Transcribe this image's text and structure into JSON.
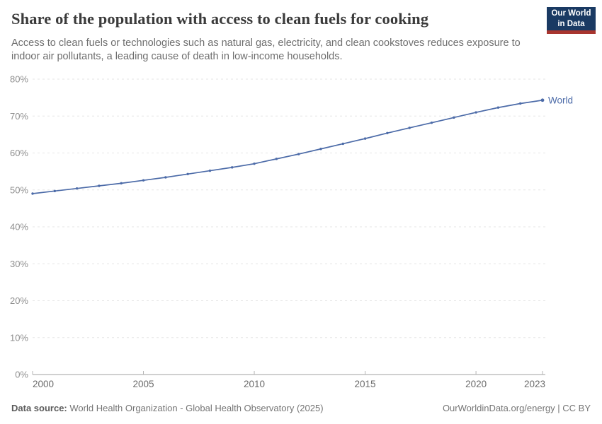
{
  "header": {
    "title": "Share of the population with access to clean fuels for cooking",
    "subtitle": "Access to clean fuels or technologies such as natural gas, electricity, and clean cookstoves reduces exposure to indoor air pollutants, a leading cause of death in low-income households.",
    "logo": {
      "line1": "Our World",
      "line2": "in Data"
    }
  },
  "chart_data": {
    "type": "line",
    "title": "Share of the population with access to clean fuels for cooking",
    "series": [
      {
        "name": "World",
        "x": [
          2000,
          2001,
          2002,
          2003,
          2004,
          2005,
          2006,
          2007,
          2008,
          2009,
          2010,
          2011,
          2012,
          2013,
          2014,
          2015,
          2016,
          2017,
          2018,
          2019,
          2020,
          2021,
          2022,
          2023
        ],
        "values": [
          49.0,
          49.7,
          50.4,
          51.1,
          51.8,
          52.6,
          53.4,
          54.3,
          55.2,
          56.1,
          57.1,
          58.4,
          59.7,
          61.1,
          62.5,
          63.9,
          65.4,
          66.8,
          68.2,
          69.6,
          71.0,
          72.3,
          73.4,
          74.3
        ]
      }
    ],
    "xlabel": "",
    "ylabel": "",
    "xlim": [
      2000,
      2023
    ],
    "ylim": [
      0,
      80
    ],
    "ytick_step": 10,
    "ytick_suffix": "%",
    "xticks": [
      2000,
      2005,
      2010,
      2015,
      2020,
      2023
    ],
    "grid": "horizontal-dashed",
    "legend_position": "end-of-line"
  },
  "footer": {
    "source_label": "Data source:",
    "source_text": "World Health Organization - Global Health Observatory (2025)",
    "credit": "OurWorldinData.org/energy | CC BY"
  },
  "colors": {
    "line": "#4c6ba8",
    "series_label": "#4c6ba8",
    "grid": "#e6e6e6",
    "axis": "#a1a1a1",
    "tick": "#b5b5b5",
    "ytick_label": "#8f8f8f",
    "xtick_label": "#6b6b6b",
    "title": "#3b3b3b",
    "subtitle": "#6e6e6e",
    "footer": "#757575",
    "logo_bg": "#1a3a63",
    "logo_red": "#a8352f"
  }
}
